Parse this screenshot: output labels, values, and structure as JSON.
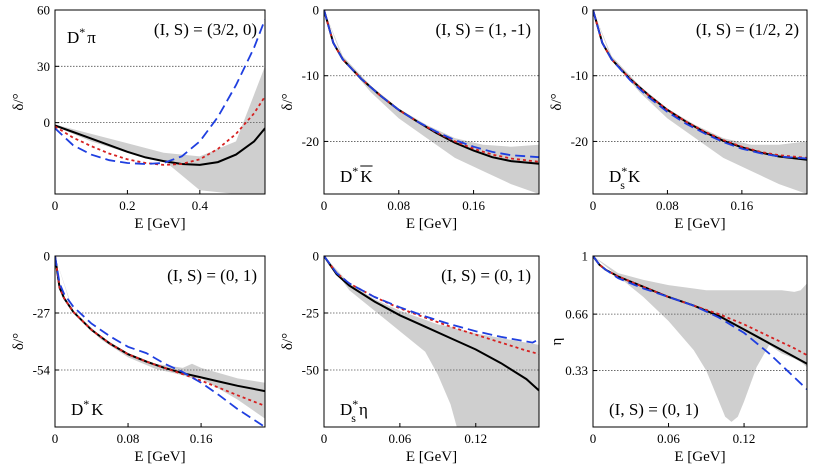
{
  "chart_data": [
    {
      "type": "line",
      "xlabel": "E [GeV]",
      "ylabel": "δ/°",
      "xlim": [
        0,
        0.58
      ],
      "ylim": [
        -38,
        60
      ],
      "xticks": [
        0,
        0.2,
        0.4
      ],
      "xtick_labels": [
        "0",
        "0.2",
        "0.4"
      ],
      "yticks": [
        0,
        30,
        60
      ],
      "ytick_labels": [
        "0",
        "30",
        "60"
      ],
      "grid_y": [
        30,
        0
      ],
      "labels": [
        {
          "text": "D",
          "sup": "*",
          "tail": "π",
          "pos": "top-left"
        },
        {
          "text": "(I, S) = (3/2, 0)",
          "pos": "top-right"
        }
      ],
      "band": {
        "x": [
          0,
          0.1,
          0.2,
          0.3,
          0.4,
          0.5,
          0.58
        ],
        "upper": [
          -1,
          -6,
          -11,
          -16,
          -18,
          -10,
          30
        ],
        "lower": [
          -2,
          -10,
          -16,
          -20,
          -36,
          -38,
          -38
        ]
      },
      "series": [
        {
          "color": "#000000",
          "style": "solid",
          "x": [
            0,
            0.05,
            0.1,
            0.15,
            0.2,
            0.25,
            0.3,
            0.35,
            0.4,
            0.45,
            0.5,
            0.55,
            0.58
          ],
          "y": [
            -1.5,
            -5,
            -8.5,
            -12,
            -15.5,
            -18.5,
            -20.5,
            -22,
            -22.5,
            -21,
            -17,
            -10,
            -3
          ]
        },
        {
          "color": "#d62020",
          "style": "dotted",
          "x": [
            0,
            0.05,
            0.1,
            0.15,
            0.2,
            0.25,
            0.3,
            0.35,
            0.4,
            0.45,
            0.5,
            0.55,
            0.58
          ],
          "y": [
            -2,
            -8,
            -12.5,
            -16.5,
            -19.5,
            -21.5,
            -22.5,
            -22,
            -19.5,
            -14,
            -6,
            5,
            14
          ]
        },
        {
          "color": "#1f3fe0",
          "style": "dashed",
          "x": [
            0,
            0.05,
            0.1,
            0.15,
            0.2,
            0.25,
            0.3,
            0.35,
            0.4,
            0.45,
            0.5,
            0.55,
            0.58
          ],
          "y": [
            -3,
            -12,
            -17,
            -20,
            -21.5,
            -22,
            -21.5,
            -18,
            -10,
            3,
            20,
            40,
            55
          ]
        }
      ]
    },
    {
      "type": "line",
      "xlabel": "E [GeV]",
      "ylabel": "δ/°",
      "xlim": [
        0,
        0.23
      ],
      "ylim": [
        -28,
        0
      ],
      "xticks": [
        0,
        0.08,
        0.16
      ],
      "xtick_labels": [
        "0",
        "0.08",
        "0.16"
      ],
      "yticks": [
        -20,
        -10,
        0
      ],
      "ytick_labels": [
        "-20",
        "-10",
        "0"
      ],
      "grid_y": [
        -10,
        -20
      ],
      "labels": [
        {
          "text": "(I, S) = (1, -1)",
          "pos": "top-right"
        },
        {
          "text": "D",
          "sup": "*",
          "tail": "K",
          "overline": true,
          "pos": "bottom-left"
        }
      ],
      "band": {
        "x": [
          0,
          0.02,
          0.05,
          0.08,
          0.11,
          0.14,
          0.17,
          0.2,
          0.23
        ],
        "upper": [
          0,
          -7,
          -11.5,
          -15,
          -17.5,
          -19.5,
          -20.5,
          -20.8,
          -20.5
        ],
        "lower": [
          0,
          -7.5,
          -12.5,
          -16.5,
          -19.5,
          -22.5,
          -24.5,
          -26.5,
          -28
        ]
      },
      "series": [
        {
          "color": "#000000",
          "style": "solid",
          "x": [
            0,
            0.01,
            0.02,
            0.04,
            0.06,
            0.08,
            0.1,
            0.12,
            0.14,
            0.16,
            0.18,
            0.2,
            0.23
          ],
          "y": [
            0,
            -5,
            -7.5,
            -10.5,
            -13,
            -15.2,
            -17,
            -18.7,
            -20.2,
            -21.4,
            -22.4,
            -23,
            -23.4
          ]
        },
        {
          "color": "#d62020",
          "style": "dotted",
          "x": [
            0,
            0.01,
            0.02,
            0.04,
            0.06,
            0.08,
            0.1,
            0.12,
            0.14,
            0.16,
            0.18,
            0.2,
            0.23
          ],
          "y": [
            0,
            -5,
            -7.5,
            -10.5,
            -13,
            -15.2,
            -17,
            -18.6,
            -20,
            -21.1,
            -22,
            -22.6,
            -23.1
          ]
        },
        {
          "color": "#1f3fe0",
          "style": "dashed",
          "x": [
            0,
            0.01,
            0.02,
            0.04,
            0.06,
            0.08,
            0.1,
            0.12,
            0.14,
            0.16,
            0.18,
            0.2,
            0.23
          ],
          "y": [
            0,
            -5,
            -7.5,
            -10.5,
            -13,
            -15.2,
            -17,
            -18.5,
            -19.8,
            -20.8,
            -21.6,
            -22.1,
            -22.4
          ]
        }
      ]
    },
    {
      "type": "line",
      "xlabel": "E [GeV]",
      "ylabel": "δ/°",
      "xlim": [
        0,
        0.23
      ],
      "ylim": [
        -28,
        0
      ],
      "xticks": [
        0,
        0.08,
        0.16
      ],
      "xtick_labels": [
        "0",
        "0.08",
        "0.16"
      ],
      "yticks": [
        -20,
        -10,
        0
      ],
      "ytick_labels": [
        "-20",
        "-10",
        "0"
      ],
      "grid_y": [
        -10,
        -20
      ],
      "labels": [
        {
          "text": "(I, S) = (1/2, 2)",
          "pos": "top-right"
        },
        {
          "text": "D",
          "sup": "*",
          "sub": "s",
          "tail": "K",
          "pos": "bottom-left"
        }
      ],
      "band": {
        "x": [
          0,
          0.02,
          0.05,
          0.08,
          0.11,
          0.14,
          0.17,
          0.2,
          0.23
        ],
        "upper": [
          0,
          -7,
          -11.5,
          -15,
          -17.5,
          -19.5,
          -20.5,
          -20.5,
          -20
        ],
        "lower": [
          0,
          -7.5,
          -12.5,
          -16.5,
          -19.5,
          -22.5,
          -24.5,
          -26.5,
          -28
        ]
      },
      "series": [
        {
          "color": "#000000",
          "style": "solid",
          "x": [
            0,
            0.01,
            0.02,
            0.04,
            0.06,
            0.08,
            0.1,
            0.12,
            0.14,
            0.16,
            0.18,
            0.2,
            0.23
          ],
          "y": [
            0,
            -5,
            -7.5,
            -10.5,
            -13,
            -15.2,
            -17,
            -18.6,
            -19.9,
            -20.9,
            -21.7,
            -22.3,
            -22.8
          ]
        },
        {
          "color": "#d62020",
          "style": "dotted",
          "x": [
            0,
            0.01,
            0.02,
            0.04,
            0.06,
            0.08,
            0.1,
            0.12,
            0.14,
            0.16,
            0.18,
            0.2,
            0.23
          ],
          "y": [
            0,
            -5,
            -7.5,
            -10.5,
            -13,
            -15.2,
            -17,
            -18.5,
            -19.8,
            -20.8,
            -21.6,
            -22.1,
            -22.5
          ]
        },
        {
          "color": "#1f3fe0",
          "style": "dashed",
          "x": [
            0,
            0.01,
            0.02,
            0.04,
            0.06,
            0.08,
            0.1,
            0.12,
            0.14,
            0.16,
            0.18,
            0.2,
            0.23
          ],
          "y": [
            0,
            -5,
            -7.5,
            -10.7,
            -13.3,
            -15.5,
            -17.3,
            -18.8,
            -20.1,
            -21.1,
            -21.8,
            -22.3,
            -22.6
          ]
        }
      ]
    },
    {
      "type": "line",
      "xlabel": "E [GeV]",
      "ylabel": "δ/°",
      "xlim": [
        0,
        0.23
      ],
      "ylim": [
        -81,
        0
      ],
      "xticks": [
        0,
        0.08,
        0.16
      ],
      "xtick_labels": [
        "0",
        "0.08",
        "0.16"
      ],
      "yticks": [
        -54,
        -27,
        0
      ],
      "ytick_labels": [
        "-54",
        "-27",
        "0"
      ],
      "grid_y": [
        -27,
        -54
      ],
      "labels": [
        {
          "text": "(I, S) = (0, 1)",
          "pos": "top-right"
        },
        {
          "text": "D",
          "sup": "*",
          "tail": "K",
          "pos": "bottom-left"
        }
      ],
      "band": {
        "x": [
          0,
          0.02,
          0.05,
          0.08,
          0.11,
          0.14,
          0.15,
          0.16,
          0.2,
          0.23
        ],
        "upper": [
          0,
          -26,
          -38,
          -46,
          -51,
          -53,
          -51,
          -53,
          -58,
          -60
        ],
        "lower": [
          0,
          -27,
          -39.5,
          -48,
          -53.5,
          -56.5,
          -58,
          -58,
          -68,
          -77
        ]
      },
      "series": [
        {
          "color": "#000000",
          "style": "solid",
          "x": [
            0,
            0.005,
            0.01,
            0.02,
            0.04,
            0.06,
            0.08,
            0.1,
            0.12,
            0.14,
            0.16,
            0.18,
            0.2,
            0.23
          ],
          "y": [
            0,
            -15,
            -20,
            -26.5,
            -35,
            -41.5,
            -46.5,
            -50,
            -53,
            -55.5,
            -57.5,
            -59.5,
            -61.5,
            -64
          ]
        },
        {
          "color": "#d62020",
          "style": "dotted",
          "x": [
            0,
            0.005,
            0.01,
            0.02,
            0.04,
            0.06,
            0.08,
            0.1,
            0.12,
            0.14,
            0.16,
            0.18,
            0.2,
            0.23
          ],
          "y": [
            0,
            -15,
            -20,
            -26.5,
            -35,
            -41.5,
            -46.5,
            -50,
            -53,
            -56,
            -59,
            -62.5,
            -66,
            -71
          ]
        },
        {
          "color": "#1f3fe0",
          "style": "dashed",
          "x": [
            0,
            0.005,
            0.01,
            0.02,
            0.04,
            0.06,
            0.08,
            0.1,
            0.12,
            0.14,
            0.16,
            0.18,
            0.2,
            0.23
          ],
          "y": [
            0,
            -13,
            -18,
            -24,
            -32,
            -38,
            -43,
            -46,
            -51,
            -55,
            -60,
            -66,
            -72.5,
            -81
          ]
        }
      ]
    },
    {
      "type": "line",
      "xlabel": "E [GeV]",
      "ylabel": "δ/°",
      "xlim": [
        0,
        0.17
      ],
      "ylim": [
        -75,
        0
      ],
      "xticks": [
        0,
        0.06,
        0.12
      ],
      "xtick_labels": [
        "0",
        "0.06",
        "0.12"
      ],
      "yticks": [
        -50,
        -25,
        0
      ],
      "ytick_labels": [
        "-50",
        "-25",
        "0"
      ],
      "grid_y": [
        -25,
        -50
      ],
      "labels": [
        {
          "text": "(I, S) = (0, 1)",
          "pos": "top-right"
        },
        {
          "text": "D",
          "sup": "*",
          "sub": "s",
          "tail": "η",
          "pos": "bottom-left"
        }
      ],
      "band": {
        "x": [
          0,
          0.02,
          0.04,
          0.06,
          0.08,
          0.09,
          0.1,
          0.105,
          0.11,
          0.12,
          0.13,
          0.15,
          0.17
        ],
        "upper": [
          0,
          -12,
          -19,
          -24,
          -28,
          -30,
          -31,
          -32,
          -32.5,
          -34,
          -35,
          -37,
          -39
        ],
        "lower": [
          0,
          -15,
          -24,
          -33,
          -42,
          -52,
          -65,
          -75,
          -75,
          -75,
          -75,
          -75,
          -75
        ]
      },
      "series": [
        {
          "color": "#000000",
          "style": "solid",
          "x": [
            0,
            0.01,
            0.02,
            0.04,
            0.06,
            0.08,
            0.1,
            0.12,
            0.14,
            0.16,
            0.17
          ],
          "y": [
            0,
            -8,
            -13,
            -20,
            -26,
            -31,
            -36,
            -41,
            -47,
            -54,
            -59
          ]
        },
        {
          "color": "#d62020",
          "style": "dotted",
          "x": [
            0,
            0.01,
            0.02,
            0.04,
            0.06,
            0.08,
            0.1,
            0.12,
            0.14,
            0.16,
            0.17
          ],
          "y": [
            0,
            -7.5,
            -12,
            -18,
            -23,
            -27,
            -31,
            -34.5,
            -38,
            -41.5,
            -43
          ]
        },
        {
          "color": "#1f3fe0",
          "style": "dashed",
          "x": [
            0,
            0.01,
            0.02,
            0.04,
            0.06,
            0.08,
            0.1,
            0.12,
            0.14,
            0.16,
            0.165,
            0.17
          ],
          "y": [
            0,
            -7.5,
            -12,
            -18,
            -22.5,
            -26.5,
            -30,
            -33,
            -35.5,
            -37.5,
            -38,
            -36.5
          ]
        }
      ]
    },
    {
      "type": "line",
      "xlabel": "E [GeV]",
      "ylabel": "η",
      "xlim": [
        0,
        0.17
      ],
      "ylim": [
        0,
        1
      ],
      "xticks": [
        0,
        0.06,
        0.12
      ],
      "xtick_labels": [
        "0",
        "0.06",
        "0.12"
      ],
      "yticks": [
        0.33,
        0.66,
        1
      ],
      "ytick_labels": [
        "0.33",
        "0.66",
        "1"
      ],
      "grid_y": [
        0.66,
        0.33
      ],
      "labels": [
        {
          "text": "(I, S) = (0, 1)",
          "pos": "bottom-left"
        }
      ],
      "band": {
        "x": [
          0,
          0.02,
          0.04,
          0.06,
          0.08,
          0.09,
          0.1,
          0.105,
          0.11,
          0.115,
          0.12,
          0.13,
          0.14,
          0.15,
          0.16,
          0.165,
          0.17
        ],
        "upper": [
          1,
          0.9,
          0.86,
          0.83,
          0.81,
          0.8,
          0.8,
          0.8,
          0.8,
          0.8,
          0.8,
          0.8,
          0.8,
          0.8,
          0.79,
          0.8,
          0.84
        ],
        "lower": [
          1,
          0.88,
          0.76,
          0.62,
          0.45,
          0.33,
          0.15,
          0.06,
          0.03,
          0.06,
          0.15,
          0.35,
          0.48,
          0.43,
          0.4,
          0.38,
          0.35
        ]
      },
      "series": [
        {
          "color": "#000000",
          "style": "solid",
          "x": [
            0,
            0.005,
            0.01,
            0.02,
            0.04,
            0.06,
            0.08,
            0.1,
            0.12,
            0.14,
            0.16,
            0.17
          ],
          "y": [
            1,
            0.95,
            0.92,
            0.88,
            0.82,
            0.76,
            0.71,
            0.65,
            0.57,
            0.49,
            0.41,
            0.37
          ]
        },
        {
          "color": "#d62020",
          "style": "dotted",
          "x": [
            0,
            0.005,
            0.01,
            0.02,
            0.04,
            0.06,
            0.08,
            0.1,
            0.12,
            0.14,
            0.16,
            0.17
          ],
          "y": [
            1,
            0.95,
            0.92,
            0.88,
            0.82,
            0.76,
            0.71,
            0.66,
            0.6,
            0.53,
            0.46,
            0.42
          ]
        },
        {
          "color": "#1f3fe0",
          "style": "dashed",
          "x": [
            0,
            0.005,
            0.01,
            0.02,
            0.04,
            0.06,
            0.08,
            0.1,
            0.12,
            0.14,
            0.16,
            0.17
          ],
          "y": [
            1,
            0.95,
            0.92,
            0.87,
            0.81,
            0.76,
            0.71,
            0.64,
            0.55,
            0.43,
            0.29,
            0.22
          ]
        }
      ]
    }
  ]
}
